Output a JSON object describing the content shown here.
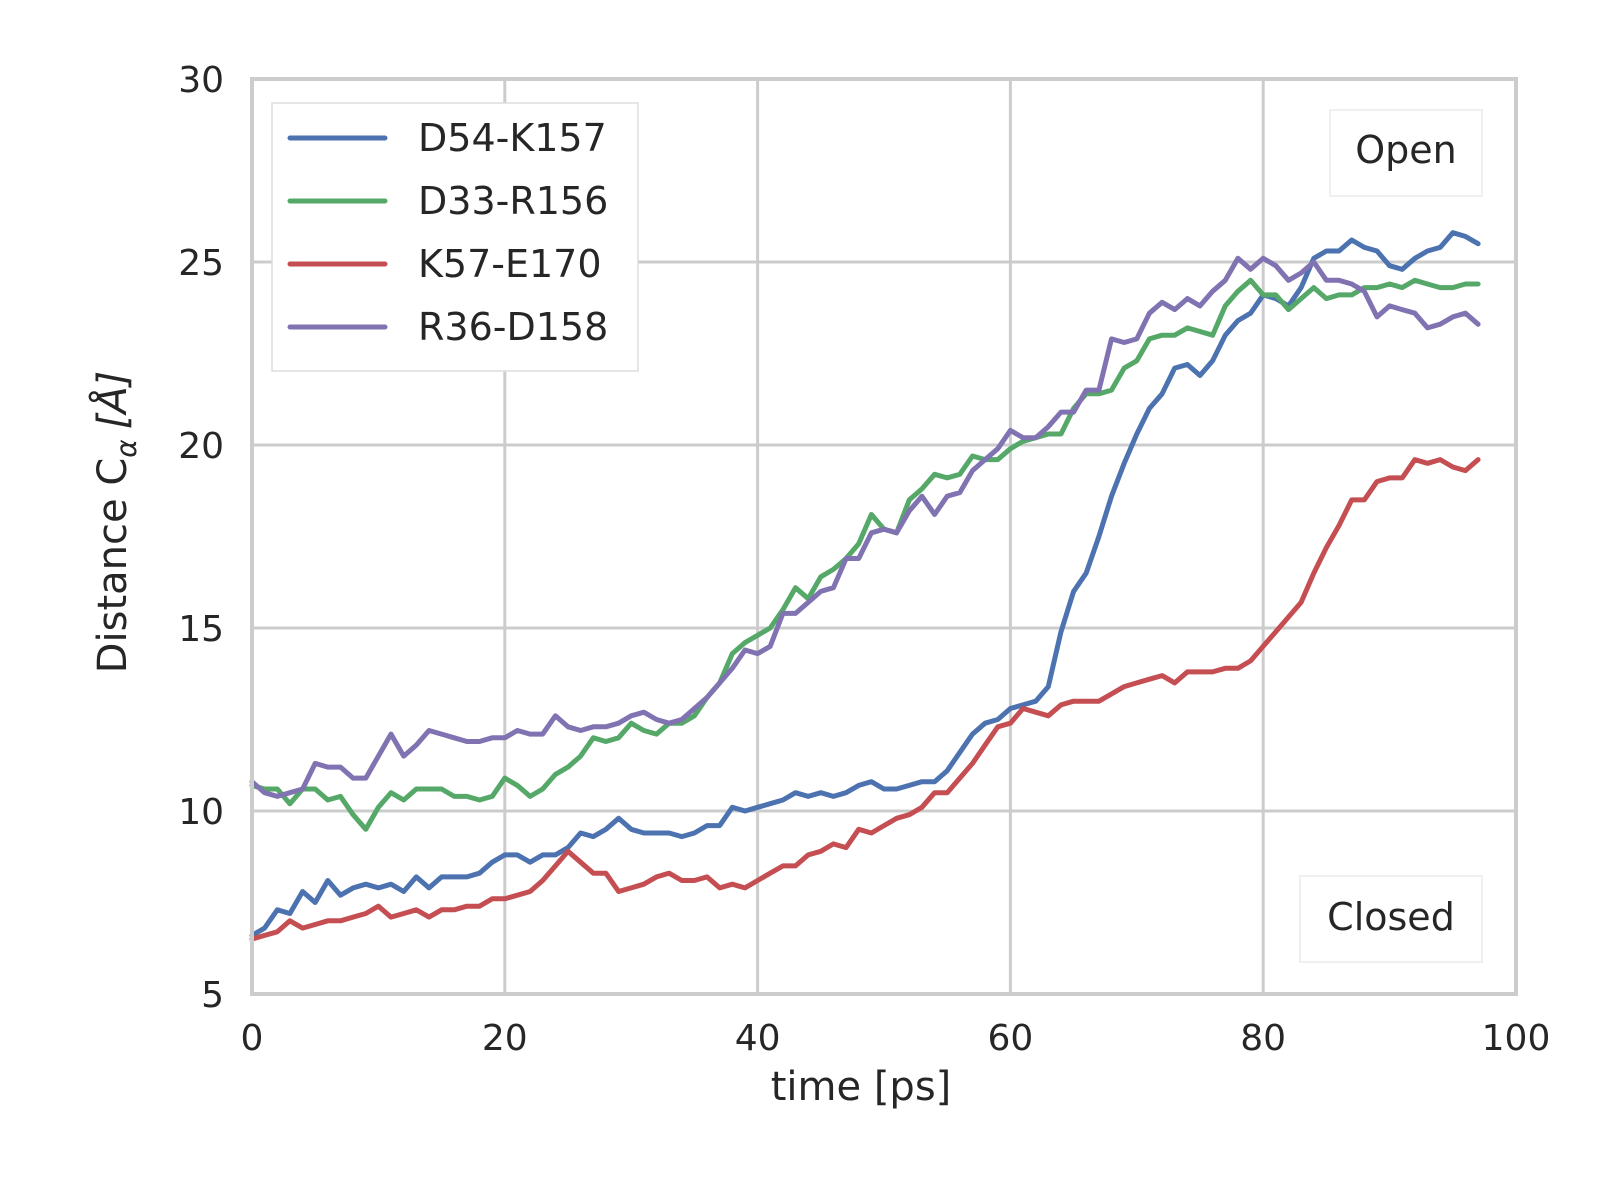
{
  "chart_data": {
    "type": "line",
    "title": "",
    "xlabel": "time [ps]",
    "ylabel": "Distance C",
    "ylabel_subscript": "α",
    "ylabel_unit": "[Å]",
    "xlim": [
      0,
      100
    ],
    "ylim": [
      5,
      30
    ],
    "xticks": [
      0,
      20,
      40,
      60,
      80,
      100
    ],
    "yticks": [
      5,
      10,
      15,
      20,
      25,
      30
    ],
    "grid": true,
    "legend_position": "upper-left",
    "annotations": [
      {
        "text": "Open",
        "position": "upper-right"
      },
      {
        "text": "Closed",
        "position": "lower-right"
      }
    ],
    "x": [
      0,
      1,
      2,
      3,
      4,
      5,
      6,
      7,
      8,
      9,
      10,
      11,
      12,
      13,
      14,
      15,
      16,
      17,
      18,
      19,
      20,
      21,
      22,
      23,
      24,
      25,
      26,
      27,
      28,
      29,
      30,
      31,
      32,
      33,
      34,
      35,
      36,
      37,
      38,
      39,
      40,
      41,
      42,
      43,
      44,
      45,
      46,
      47,
      48,
      49,
      50,
      51,
      52,
      53,
      54,
      55,
      56,
      57,
      58,
      59,
      60,
      61,
      62,
      63,
      64,
      65,
      66,
      67,
      68,
      69,
      70,
      71,
      72,
      73,
      74,
      75,
      76,
      77,
      78,
      79,
      80,
      81,
      82,
      83,
      84,
      85,
      86,
      87,
      88,
      89,
      90,
      91,
      92,
      93,
      94,
      95,
      96,
      97
    ],
    "series": [
      {
        "name": "D54-K157",
        "color": "#4c72b0",
        "values": [
          6.6,
          6.8,
          7.3,
          7.2,
          7.8,
          7.5,
          8.1,
          7.7,
          7.9,
          8.0,
          7.9,
          8.0,
          7.8,
          8.2,
          7.9,
          8.2,
          8.2,
          8.2,
          8.3,
          8.6,
          8.8,
          8.8,
          8.6,
          8.8,
          8.8,
          9.0,
          9.4,
          9.3,
          9.5,
          9.8,
          9.5,
          9.4,
          9.4,
          9.4,
          9.3,
          9.4,
          9.6,
          9.6,
          10.1,
          10.0,
          10.1,
          10.2,
          10.3,
          10.5,
          10.4,
          10.5,
          10.4,
          10.5,
          10.7,
          10.8,
          10.6,
          10.6,
          10.7,
          10.8,
          10.8,
          11.1,
          11.6,
          12.1,
          12.4,
          12.5,
          12.8,
          12.9,
          13.0,
          13.4,
          14.9,
          16.0,
          16.5,
          17.5,
          18.6,
          19.5,
          20.3,
          21.0,
          21.4,
          22.1,
          22.2,
          21.9,
          22.3,
          23.0,
          23.4,
          23.6,
          24.1,
          24.0,
          23.8,
          24.3,
          25.1,
          25.3,
          25.3,
          25.6,
          25.4,
          25.3,
          24.9,
          24.8,
          25.1,
          25.3,
          25.4,
          25.8,
          25.7,
          25.5
        ]
      },
      {
        "name": "D33-R156",
        "color": "#55a868",
        "values": [
          10.7,
          10.6,
          10.6,
          10.2,
          10.6,
          10.6,
          10.3,
          10.4,
          9.9,
          9.5,
          10.1,
          10.5,
          10.3,
          10.6,
          10.6,
          10.6,
          10.4,
          10.4,
          10.3,
          10.4,
          10.9,
          10.7,
          10.4,
          10.6,
          11.0,
          11.2,
          11.5,
          12.0,
          11.9,
          12.0,
          12.4,
          12.2,
          12.1,
          12.4,
          12.4,
          12.6,
          13.1,
          13.5,
          14.3,
          14.6,
          14.8,
          15.0,
          15.5,
          16.1,
          15.8,
          16.4,
          16.6,
          16.9,
          17.3,
          18.1,
          17.7,
          17.6,
          18.5,
          18.8,
          19.2,
          19.1,
          19.2,
          19.7,
          19.6,
          19.6,
          19.9,
          20.1,
          20.2,
          20.3,
          20.3,
          21.0,
          21.4,
          21.4,
          21.5,
          22.1,
          22.3,
          22.9,
          23.0,
          23.0,
          23.2,
          23.1,
          23.0,
          23.8,
          24.2,
          24.5,
          24.1,
          24.1,
          23.7,
          24.0,
          24.3,
          24.0,
          24.1,
          24.1,
          24.3,
          24.3,
          24.4,
          24.3,
          24.5,
          24.4,
          24.3,
          24.3,
          24.4,
          24.4
        ]
      },
      {
        "name": "K57-E170",
        "color": "#c44e52",
        "values": [
          6.5,
          6.6,
          6.7,
          7.0,
          6.8,
          6.9,
          7.0,
          7.0,
          7.1,
          7.2,
          7.4,
          7.1,
          7.2,
          7.3,
          7.1,
          7.3,
          7.3,
          7.4,
          7.4,
          7.6,
          7.6,
          7.7,
          7.8,
          8.1,
          8.5,
          8.9,
          8.6,
          8.3,
          8.3,
          7.8,
          7.9,
          8.0,
          8.2,
          8.3,
          8.1,
          8.1,
          8.2,
          7.9,
          8.0,
          7.9,
          8.1,
          8.3,
          8.5,
          8.5,
          8.8,
          8.9,
          9.1,
          9.0,
          9.5,
          9.4,
          9.6,
          9.8,
          9.9,
          10.1,
          10.5,
          10.5,
          10.9,
          11.3,
          11.8,
          12.3,
          12.4,
          12.8,
          12.7,
          12.6,
          12.9,
          13.0,
          13.0,
          13.0,
          13.2,
          13.4,
          13.5,
          13.6,
          13.7,
          13.5,
          13.8,
          13.8,
          13.8,
          13.9,
          13.9,
          14.1,
          14.5,
          14.9,
          15.3,
          15.7,
          16.5,
          17.2,
          17.8,
          18.5,
          18.5,
          19.0,
          19.1,
          19.1,
          19.6,
          19.5,
          19.6,
          19.4,
          19.3,
          19.6
        ]
      },
      {
        "name": "R36-D158",
        "color": "#8172b2",
        "values": [
          10.8,
          10.5,
          10.4,
          10.5,
          10.6,
          11.3,
          11.2,
          11.2,
          10.9,
          10.9,
          11.5,
          12.1,
          11.5,
          11.8,
          12.2,
          12.1,
          12.0,
          11.9,
          11.9,
          12.0,
          12.0,
          12.2,
          12.1,
          12.1,
          12.6,
          12.3,
          12.2,
          12.3,
          12.3,
          12.4,
          12.6,
          12.7,
          12.5,
          12.4,
          12.5,
          12.8,
          13.1,
          13.5,
          13.9,
          14.4,
          14.3,
          14.5,
          15.4,
          15.4,
          15.7,
          16.0,
          16.1,
          16.9,
          16.9,
          17.6,
          17.7,
          17.6,
          18.2,
          18.6,
          18.1,
          18.6,
          18.7,
          19.3,
          19.6,
          19.9,
          20.4,
          20.2,
          20.2,
          20.5,
          20.9,
          20.9,
          21.5,
          21.5,
          22.9,
          22.8,
          22.9,
          23.6,
          23.9,
          23.7,
          24.0,
          23.8,
          24.2,
          24.5,
          25.1,
          24.8,
          25.1,
          24.9,
          24.5,
          24.7,
          25.0,
          24.5,
          24.5,
          24.4,
          24.2,
          23.5,
          23.8,
          23.7,
          23.6,
          23.2,
          23.3,
          23.5,
          23.6,
          23.3
        ]
      }
    ]
  }
}
